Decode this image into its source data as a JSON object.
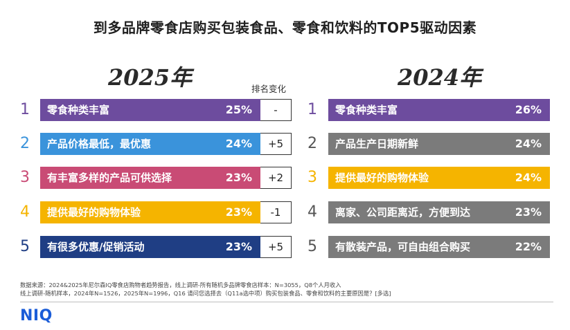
{
  "title": "到多品牌零食店购买包装食品、零食和饮料的TOP5驱动因素",
  "rank_change_header": "排名变化",
  "colors": {
    "purple": "#6d4c9e",
    "blue": "#3a93db",
    "rose": "#c94b75",
    "gold": "#f5b400",
    "navy": "#1f3e84",
    "gray": "#7b7b7b"
  },
  "chart_data": [
    {
      "type": "bar",
      "title": "2025年",
      "rows": [
        {
          "rank": "1",
          "label": "零食种类丰富",
          "value": 25,
          "value_label": "25%",
          "rank_change": "-",
          "color": "#6d4c9e",
          "rank_color": "#6d4c9e"
        },
        {
          "rank": "2",
          "label": "产品价格最低，最优惠",
          "value": 24,
          "value_label": "24%",
          "rank_change": "+5",
          "color": "#3a93db",
          "rank_color": "#3a93db"
        },
        {
          "rank": "3",
          "label": "有丰富多样的产品可供选择",
          "value": 23,
          "value_label": "23%",
          "rank_change": "+2",
          "color": "#c94b75",
          "rank_color": "#c94b75"
        },
        {
          "rank": "4",
          "label": "提供最好的购物体验",
          "value": 23,
          "value_label": "23%",
          "rank_change": "-1",
          "color": "#f5b400",
          "rank_color": "#f5b400"
        },
        {
          "rank": "5",
          "label": "有很多优惠/促销活动",
          "value": 23,
          "value_label": "23%",
          "rank_change": "+5",
          "color": "#1f3e84",
          "rank_color": "#1f3e84"
        }
      ]
    },
    {
      "type": "bar",
      "title": "2024年",
      "rows": [
        {
          "rank": "1",
          "label": "零食种类丰富",
          "value": 26,
          "value_label": "26%",
          "color": "#6d4c9e",
          "rank_color": "#6d4c9e"
        },
        {
          "rank": "2",
          "label": "产品生产日期新鲜",
          "value": 24,
          "value_label": "24%",
          "color": "#7b7b7b",
          "rank_color": "#555555"
        },
        {
          "rank": "3",
          "label": "提供最好的购物体验",
          "value": 24,
          "value_label": "24%",
          "color": "#f5b400",
          "rank_color": "#f5b400"
        },
        {
          "rank": "4",
          "label": "离家、公司距离近，方便到达",
          "value": 23,
          "value_label": "23%",
          "color": "#7b7b7b",
          "rank_color": "#555555"
        },
        {
          "rank": "5",
          "label": "有散装产品，可自由组合购买",
          "value": 22,
          "value_label": "22%",
          "color": "#7b7b7b",
          "rank_color": "#555555"
        }
      ]
    }
  ],
  "source": {
    "line1": "数据来源：2024&2025年尼尔森IQ零食店购物者趋势报告，线上调研-所有随机多品牌零食店样本：N=3055，Q8个人月收入",
    "line2": "线上调研-随机样本，2024年N=1526，2025年N=1996，Q16 请问您选择去（Q11a选中项）购买包装食品、零食和饮料的主要原因是？[多选]"
  },
  "logo": "NIQ"
}
